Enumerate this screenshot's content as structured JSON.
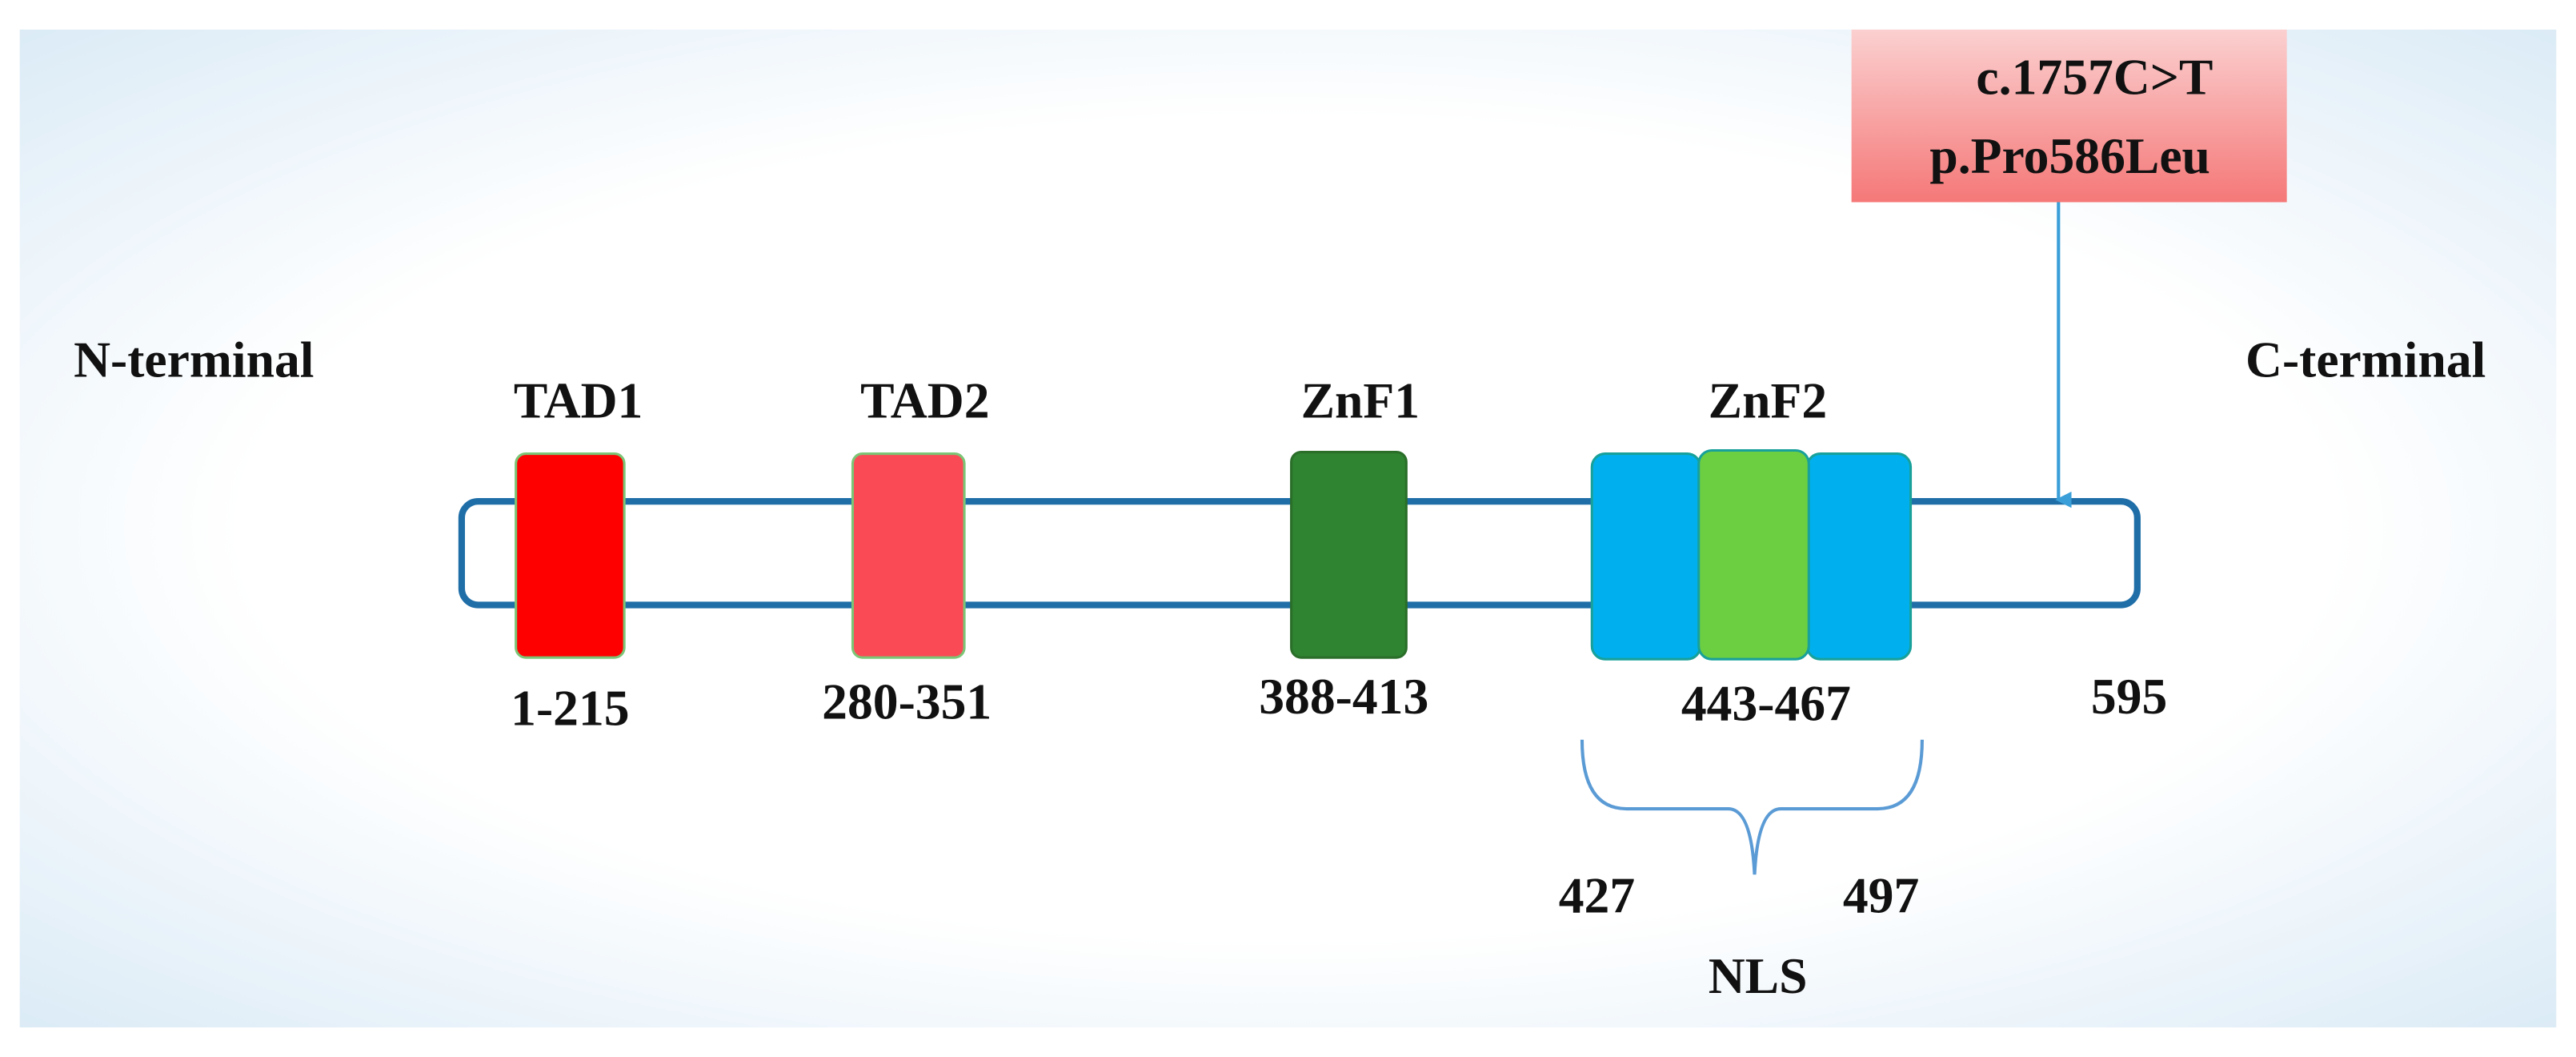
{
  "terminals": {
    "n": "N-terminal",
    "c": "C-terminal"
  },
  "domains": [
    {
      "name": "TAD1",
      "range": "1-215"
    },
    {
      "name": "TAD2",
      "range": "280-351"
    },
    {
      "name": "ZnF1",
      "range": "388-413"
    },
    {
      "name": "ZnF2",
      "range": "443-467"
    }
  ],
  "end": "595",
  "nls": {
    "name": "NLS",
    "start": "427",
    "end": "497"
  },
  "mutation": {
    "cdna": "c.1757C>T",
    "protein": "p.Pro586Leu"
  }
}
